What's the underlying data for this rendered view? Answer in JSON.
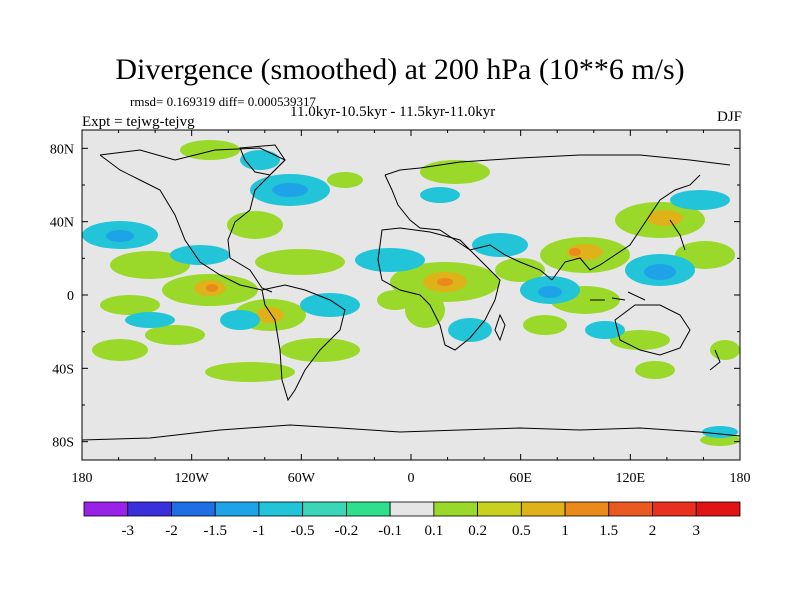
{
  "title": "Divergence (smoothed) at 200 hPa (10**6 m/s)",
  "stats": "rmsd= 0.169319 diff= 0.000539317",
  "period": "11.0kyr-10.5kyr - 11.5kyr-11.0kyr",
  "experiment": "Expt = tejwg-tejvg",
  "season": "DJF",
  "map": {
    "projection": "cylindrical equidistant",
    "lon_range": [
      -180,
      180
    ],
    "lat_range": [
      -90,
      90
    ],
    "x_tick_labels": [
      "180",
      "120W",
      "60W",
      "0",
      "60E",
      "120E",
      "180"
    ],
    "y_tick_labels": [
      "80N",
      "40N",
      "0",
      "40S",
      "80S"
    ]
  },
  "colorbar": {
    "labels": [
      "-3",
      "-2",
      "-1.5",
      "-1",
      "-0.5",
      "-0.2",
      "-0.1",
      "0.1",
      "0.2",
      "0.5",
      "1",
      "1.5",
      "2",
      "3"
    ],
    "colors": [
      "#9a22e8",
      "#3a2fdc",
      "#1f6ee2",
      "#1fa3e8",
      "#22c4d8",
      "#3bd6b8",
      "#2ee08e",
      "#e6e6e6",
      "#9ad82a",
      "#c8d020",
      "#e0b21a",
      "#ea8a1c",
      "#ea5a20",
      "#e8301e",
      "#e01414"
    ]
  }
}
